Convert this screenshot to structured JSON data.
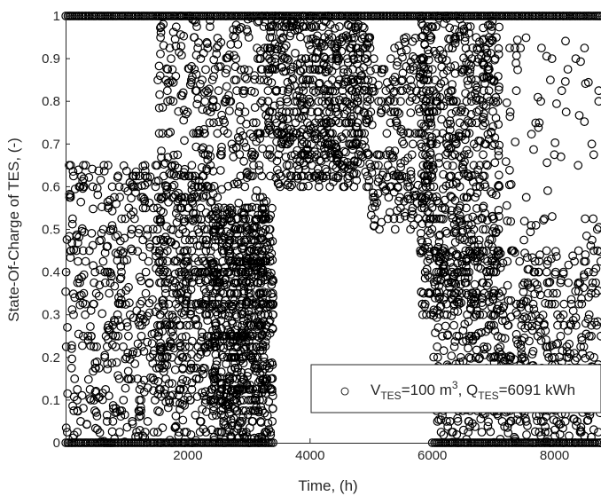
{
  "chart_data": {
    "type": "scatter",
    "title": "",
    "xlabel": "Time, (h)",
    "ylabel": "State-Of-Charge of TES, (-)",
    "xlim": [
      0,
      8760
    ],
    "ylim": [
      0,
      1
    ],
    "x_ticks": [
      2000,
      4000,
      6000,
      8000
    ],
    "y_ticks": [
      0,
      0.1,
      0.2,
      0.3,
      0.4,
      0.5,
      0.6,
      0.7,
      0.8,
      0.9,
      1
    ],
    "x_tick_labels": [
      "2000",
      "4000",
      "6000",
      "8000"
    ],
    "y_tick_labels": [
      "0",
      "0.1",
      "0.2",
      "0.3",
      "0.4",
      "0.5",
      "0.6",
      "0.7",
      "0.8",
      "0.9",
      "1"
    ],
    "grid": false,
    "legend_position": "bottom-right",
    "marker": "open-circle",
    "series": [
      {
        "legend_text": "V_TES=100 m^3, Q_TES=6091 kWh",
        "color": "#000000",
        "regions": [
          {
            "x_range": [
              0,
              2400
            ],
            "y_range": [
              0,
              0.65
            ],
            "density": "dense"
          },
          {
            "x_range": [
              1500,
              3300
            ],
            "y_range": [
              0.1,
              1.0
            ],
            "density": "dense"
          },
          {
            "x_range": [
              2400,
              3400
            ],
            "y_range": [
              0,
              0.55
            ],
            "density": "dense"
          },
          {
            "x_range": [
              3300,
              5000
            ],
            "y_range": [
              0.6,
              1.0
            ],
            "density": "dense"
          },
          {
            "x_range": [
              5000,
              6000
            ],
            "y_range": [
              0.5,
              0.95
            ],
            "density": "medium"
          },
          {
            "x_range": [
              5800,
              7100
            ],
            "y_range": [
              0.3,
              1.0
            ],
            "density": "dense"
          },
          {
            "x_range": [
              6000,
              8760
            ],
            "y_range": [
              0,
              0.45
            ],
            "density": "dense"
          },
          {
            "x_range": [
              7200,
              8760
            ],
            "y_range": [
              0.45,
              0.95
            ],
            "density": "sparse"
          }
        ],
        "rows": [
          {
            "y": 0,
            "x_range": [
              0,
              3400
            ]
          },
          {
            "y": 0,
            "x_range": [
              6000,
              8760
            ]
          },
          {
            "y": 1,
            "x_range": [
              0,
              8760
            ]
          }
        ]
      }
    ]
  },
  "legend": {
    "marker_symbol": "○",
    "prefix": "V",
    "v_sub": "TES",
    "v_mid": "=100 m",
    "v_sup": "3",
    "q_pre": ", Q",
    "q_sub": "TES",
    "q_post": "=6091 kWh"
  }
}
